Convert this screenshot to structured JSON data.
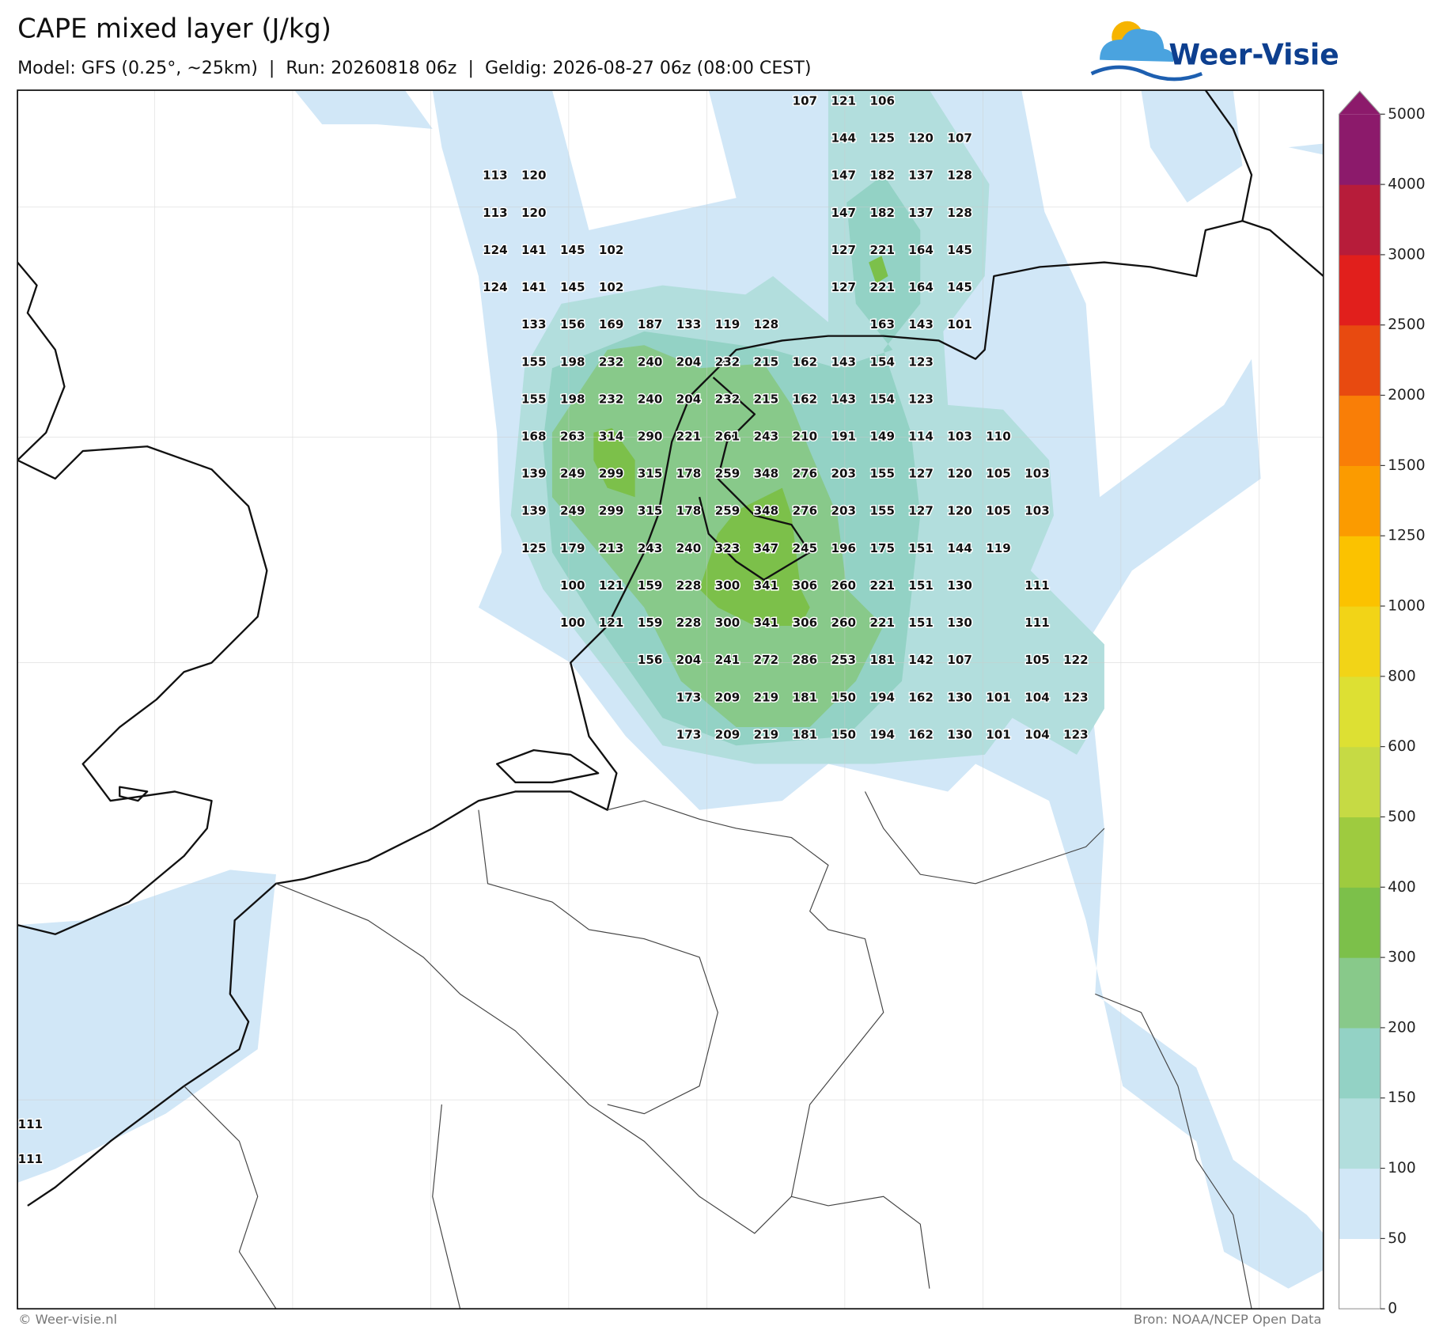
{
  "header": {
    "title": "CAPE mixed layer (J/kg)",
    "subtitle": "Model: GFS (0.25°, ~25km)  |  Run: 20260818 06z  |  Geldig: 2026-08-27 06z (08:00 CEST)"
  },
  "logo": "Weer-Visie",
  "map": {
    "grid_values": [
      [
        null,
        null,
        null,
        null,
        null,
        null,
        null,
        null,
        107,
        121,
        106,
        null,
        null,
        null,
        null,
        null
      ],
      [
        null,
        null,
        null,
        null,
        null,
        null,
        null,
        null,
        null,
        144,
        125,
        120,
        107,
        null,
        null,
        null
      ],
      [
        113,
        120,
        null,
        null,
        null,
        null,
        null,
        null,
        null,
        147,
        182,
        137,
        128,
        null,
        null,
        null
      ],
      [
        113,
        120,
        null,
        null,
        null,
        null,
        null,
        null,
        null,
        147,
        182,
        137,
        128,
        null,
        null,
        null
      ],
      [
        124,
        141,
        145,
        102,
        null,
        null,
        null,
        null,
        null,
        127,
        221,
        164,
        145,
        null,
        null,
        null
      ],
      [
        124,
        141,
        145,
        102,
        null,
        null,
        null,
        null,
        null,
        127,
        221,
        164,
        145,
        null,
        null,
        null
      ],
      [
        null,
        133,
        156,
        169,
        187,
        133,
        119,
        128,
        null,
        null,
        163,
        143,
        101,
        null,
        null,
        null
      ],
      [
        null,
        155,
        198,
        232,
        240,
        204,
        232,
        215,
        162,
        143,
        154,
        123,
        null,
        null,
        null,
        null
      ],
      [
        null,
        155,
        198,
        232,
        240,
        204,
        232,
        215,
        162,
        143,
        154,
        123,
        null,
        null,
        null,
        null
      ],
      [
        null,
        168,
        263,
        314,
        290,
        221,
        261,
        243,
        210,
        191,
        149,
        114,
        103,
        110,
        null,
        null
      ],
      [
        null,
        139,
        249,
        299,
        315,
        178,
        259,
        348,
        276,
        203,
        155,
        127,
        120,
        105,
        103,
        null
      ],
      [
        null,
        139,
        249,
        299,
        315,
        178,
        259,
        348,
        276,
        203,
        155,
        127,
        120,
        105,
        103,
        null
      ],
      [
        null,
        125,
        179,
        213,
        243,
        240,
        323,
        347,
        245,
        196,
        175,
        151,
        144,
        119,
        null,
        null
      ],
      [
        null,
        null,
        100,
        121,
        159,
        228,
        300,
        341,
        306,
        260,
        221,
        151,
        130,
        null,
        111,
        null
      ],
      [
        null,
        null,
        100,
        121,
        159,
        228,
        300,
        341,
        306,
        260,
        221,
        151,
        130,
        null,
        111,
        null
      ],
      [
        null,
        null,
        null,
        null,
        156,
        204,
        241,
        272,
        286,
        253,
        181,
        142,
        107,
        null,
        105,
        122
      ],
      [
        null,
        null,
        null,
        null,
        null,
        173,
        209,
        219,
        181,
        150,
        194,
        162,
        130,
        101,
        104,
        123
      ],
      [
        null,
        null,
        null,
        null,
        null,
        173,
        209,
        219,
        181,
        150,
        194,
        162,
        130,
        101,
        104,
        123
      ]
    ],
    "edge_values": [
      111,
      111
    ]
  },
  "colorbar": {
    "ticks": [
      0,
      50,
      100,
      150,
      200,
      300,
      400,
      500,
      600,
      800,
      1000,
      1250,
      1500,
      2000,
      2500,
      3000,
      4000,
      5000
    ],
    "colors": [
      "#ffffff",
      "#d1e7f7",
      "#b2dedd",
      "#93d2c5",
      "#88c98a",
      "#7cc04a",
      "#9ecb3f",
      "#c6da44",
      "#dde033",
      "#f2d417",
      "#fbc200",
      "#fb9b00",
      "#f97e07",
      "#e84a10",
      "#e11f1c",
      "#b71c3a",
      "#8c1a6b"
    ]
  },
  "footer": {
    "copyright": "© Weer-visie.nl",
    "source": "Bron: NOAA/NCEP Open Data"
  }
}
